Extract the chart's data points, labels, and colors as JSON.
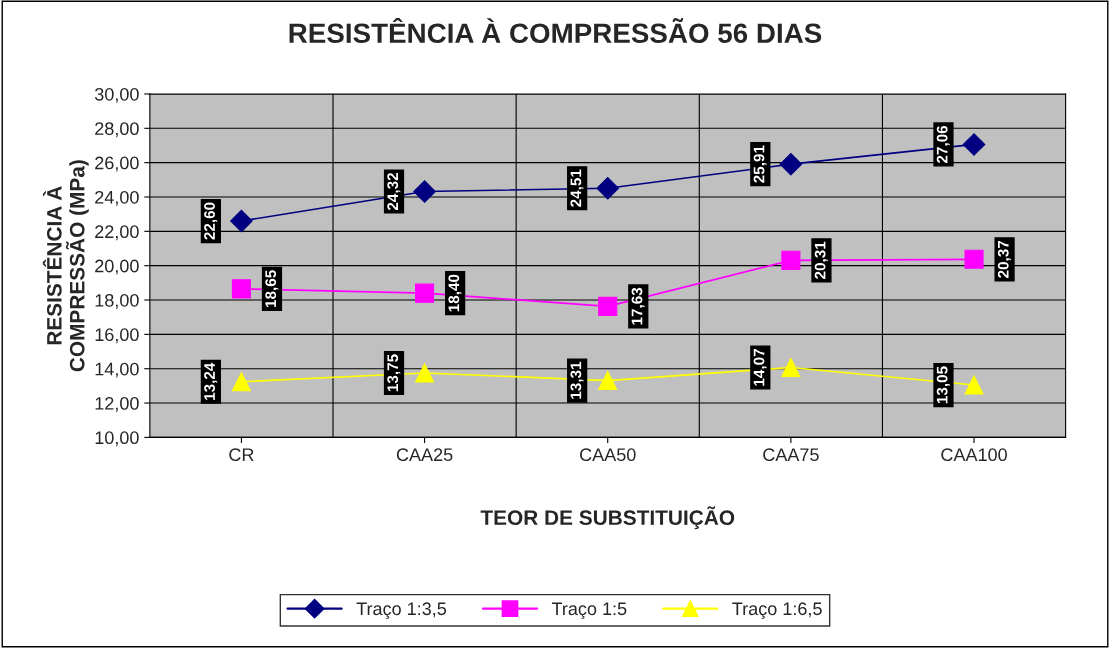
{
  "chart_data": {
    "type": "line",
    "title": "RESISTÊNCIA À COMPRESSÃO 56 DIAS",
    "xlabel": "TEOR DE SUBSTITUIÇÃO",
    "ylabel": "RESISTÊNCIA À\nCOMPRESSÃO (MPa)",
    "categories": [
      "CR",
      "CAA25",
      "CAA50",
      "CAA75",
      "CAA100"
    ],
    "series": [
      {
        "name": "Traço 1:3,5",
        "color": "#000080",
        "marker": "diamond",
        "values": [
          22.6,
          24.32,
          24.51,
          25.91,
          27.06
        ],
        "value_labels": [
          "22,60",
          "24,32",
          "24,51",
          "25,91",
          "27,06"
        ]
      },
      {
        "name": "Traço 1:5",
        "color": "#ff00ff",
        "marker": "square",
        "values": [
          18.65,
          18.4,
          17.63,
          20.31,
          20.37
        ],
        "value_labels": [
          "18,65",
          "18,40",
          "17,63",
          "20,31",
          "20,37"
        ]
      },
      {
        "name": "Traço 1:6,5",
        "color": "#ffff00",
        "marker": "triangle",
        "values": [
          13.24,
          13.75,
          13.31,
          14.07,
          13.05
        ],
        "value_labels": [
          "13,24",
          "13,75",
          "13,31",
          "14,07",
          "13,05"
        ]
      }
    ],
    "ylim": [
      10,
      30
    ],
    "yticks": [
      {
        "value": 10,
        "label": "10,00"
      },
      {
        "value": 12,
        "label": "12,00"
      },
      {
        "value": 14,
        "label": "14,00"
      },
      {
        "value": 16,
        "label": "16,00"
      },
      {
        "value": 18,
        "label": "18,00"
      },
      {
        "value": 20,
        "label": "20,00"
      },
      {
        "value": 22,
        "label": "22,00"
      },
      {
        "value": 24,
        "label": "24,00"
      },
      {
        "value": 26,
        "label": "26,00"
      },
      {
        "value": 28,
        "label": "28,00"
      },
      {
        "value": 30,
        "label": "30,00"
      }
    ],
    "grid": true,
    "legend": "bottom"
  }
}
